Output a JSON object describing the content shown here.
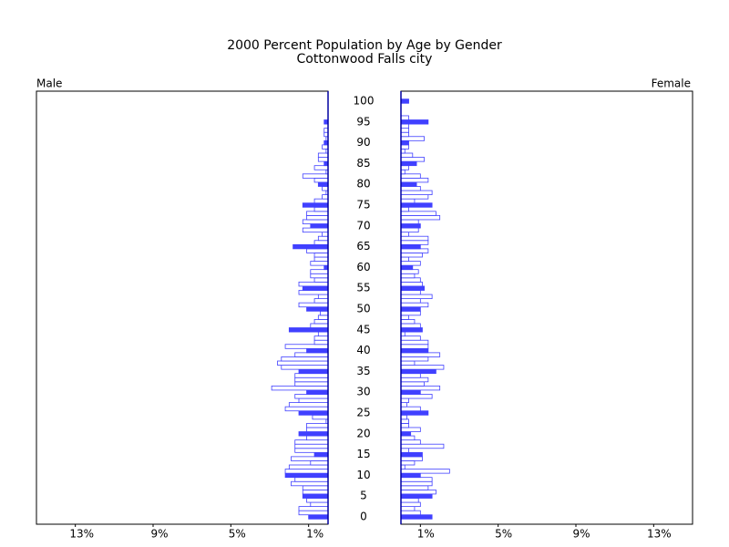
{
  "chart_data": {
    "type": "pyramid",
    "title": "2000 Percent Population by Age by Gender",
    "subtitle": "Cottonwood Falls city",
    "categories": [
      0,
      null,
      null,
      null,
      null,
      5,
      null,
      null,
      null,
      null,
      10,
      null,
      null,
      null,
      null,
      15,
      null,
      null,
      null,
      null,
      20,
      null,
      null,
      null,
      null,
      25,
      null,
      null,
      null,
      null,
      30,
      null,
      null,
      null,
      null,
      35,
      null,
      null,
      null,
      null,
      40,
      null,
      null,
      null,
      null,
      45,
      null,
      null,
      null,
      null,
      50,
      null,
      null,
      null,
      null,
      55,
      null,
      null,
      null,
      null,
      60,
      null,
      null,
      null,
      null,
      65,
      null,
      null,
      null,
      null,
      70,
      null,
      null,
      null,
      null,
      75,
      null,
      null,
      null,
      null,
      80,
      null,
      null,
      null,
      null,
      85,
      null,
      null,
      null,
      null,
      90,
      null,
      null,
      null,
      null,
      95,
      null,
      null,
      null,
      null,
      100
    ],
    "xlim": [
      0,
      15
    ],
    "xticks": [
      {
        "value": 1,
        "label": "1%"
      },
      {
        "value": 5,
        "label": "5%"
      },
      {
        "value": 9,
        "label": "9%"
      },
      {
        "value": 13,
        "label": "13%"
      }
    ],
    "series": [
      {
        "name": "Male",
        "color": "#4040ff",
        "values": [
          1.0,
          1.5,
          1.5,
          0.9,
          1.1,
          1.3,
          1.3,
          1.3,
          1.9,
          1.7,
          2.2,
          2.2,
          2.0,
          0.9,
          1.9,
          0.7,
          1.7,
          1.7,
          1.7,
          1.1,
          1.5,
          1.1,
          1.1,
          0.1,
          0.8,
          1.5,
          2.2,
          2.0,
          1.5,
          1.7,
          1.1,
          2.9,
          1.7,
          1.7,
          1.7,
          1.5,
          2.4,
          2.6,
          2.4,
          1.7,
          1.1,
          2.2,
          0.7,
          0.7,
          0.5,
          2.0,
          0.9,
          0.7,
          0.5,
          0.4,
          1.1,
          1.5,
          0.7,
          0.5,
          1.5,
          1.3,
          1.5,
          0.7,
          0.9,
          0.9,
          0.2,
          0.9,
          0.7,
          0.7,
          1.1,
          1.8,
          0.7,
          0.5,
          0.3,
          1.3,
          0.9,
          1.3,
          1.1,
          1.1,
          0.7,
          1.3,
          0.7,
          0.3,
          0.1,
          0.3,
          0.5,
          0.7,
          1.3,
          0.1,
          0.7,
          0.2,
          0.5,
          0.5,
          0.1,
          0.3,
          0.2,
          0.1,
          0.2,
          0.2,
          0,
          0.2,
          0,
          0,
          0,
          0,
          0
        ]
      },
      {
        "name": "Female",
        "color": "#4040ff",
        "values": [
          1.6,
          1.0,
          0.7,
          1.0,
          0.9,
          1.6,
          1.8,
          1.4,
          1.6,
          1.6,
          1.0,
          2.5,
          0.2,
          0.7,
          1.1,
          1.1,
          0.4,
          2.2,
          1.0,
          0.7,
          0.5,
          1.0,
          0.4,
          0.4,
          0.3,
          1.4,
          1.0,
          0.3,
          0.4,
          1.6,
          1.0,
          2.0,
          1.2,
          1.4,
          1.0,
          1.8,
          2.2,
          0.7,
          1.4,
          2.0,
          1.4,
          1.4,
          1.4,
          1.0,
          0.2,
          1.1,
          1.0,
          0.7,
          0.4,
          1.0,
          1.0,
          1.4,
          1.0,
          1.6,
          1.0,
          1.2,
          1.1,
          1.0,
          0.7,
          0.9,
          0.6,
          1.0,
          0.4,
          1.1,
          1.4,
          1.0,
          1.4,
          1.4,
          0.4,
          0.9,
          1.0,
          0.9,
          2.0,
          1.8,
          0.4,
          1.6,
          0.7,
          1.4,
          1.6,
          1.0,
          0.8,
          1.4,
          1.0,
          0.2,
          0.4,
          0.8,
          1.2,
          0.6,
          0.2,
          0.4,
          0.4,
          1.2,
          0.4,
          0.4,
          0.4,
          1.4,
          0.4,
          0,
          0,
          0,
          0.4
        ]
      }
    ]
  }
}
